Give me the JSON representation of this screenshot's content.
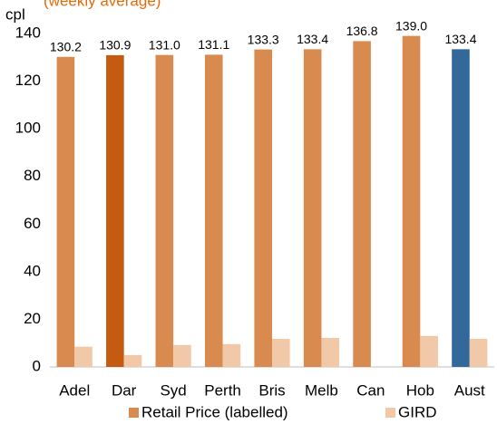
{
  "chart_data": {
    "type": "bar",
    "title": "(weekly average)",
    "y_axis_label": "cpl",
    "categories": [
      "Adel",
      "Dar",
      "Syd",
      "Perth",
      "Bris",
      "Melb",
      "Can",
      "Hob",
      "Aust"
    ],
    "series": [
      {
        "name": "Retail Price (labelled)",
        "color": "#d98b4f",
        "colors": [
          "#d98b4f",
          "#c55a11",
          "#d98b4f",
          "#d98b4f",
          "#d98b4f",
          "#d98b4f",
          "#d98b4f",
          "#d98b4f",
          "#33689a"
        ],
        "values": [
          130.2,
          130.9,
          131.0,
          131.1,
          133.3,
          133.4,
          136.8,
          139.0,
          133.4
        ],
        "value_labels": [
          "130.2",
          "130.9",
          "131.0",
          "131.1",
          "133.3",
          "133.4",
          "136.8",
          "139.0",
          "133.4"
        ]
      },
      {
        "name": "GIRD",
        "color": "#f2c9a8",
        "values": [
          8.5,
          5.0,
          9.2,
          9.6,
          11.8,
          12.2,
          null,
          13.0,
          11.8
        ]
      }
    ],
    "ylim": [
      0,
      140
    ],
    "yticks": [
      0,
      20,
      40,
      60,
      80,
      100,
      120,
      140
    ],
    "legend": "bottom"
  }
}
